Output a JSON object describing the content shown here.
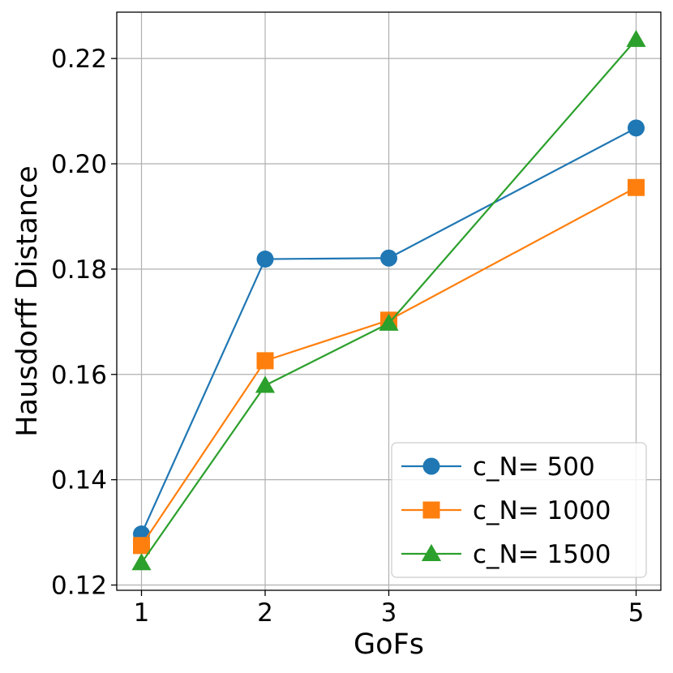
{
  "chart_data": {
    "type": "line",
    "title": "",
    "xlabel": "GoFs",
    "ylabel": "Hausdorff Distance",
    "x": [
      1,
      2,
      3,
      5
    ],
    "xlim": [
      0.8,
      5.2
    ],
    "ylim": [
      0.119,
      0.2288
    ],
    "x_ticks": [
      1,
      2,
      3,
      5
    ],
    "x_tick_labels": [
      "1",
      "2",
      "3",
      "5"
    ],
    "y_ticks": [
      0.12,
      0.14,
      0.16,
      0.18,
      0.2,
      0.22
    ],
    "y_tick_labels": [
      "0.12",
      "0.14",
      "0.16",
      "0.18",
      "0.20",
      "0.22"
    ],
    "grid": true,
    "legend_position": "lower-right",
    "series": [
      {
        "name": "c_N= 500",
        "label": "c_N= 500",
        "color": "#1f77b4",
        "marker": "circle",
        "values": [
          0.1297,
          0.1819,
          0.1821,
          0.2068
        ]
      },
      {
        "name": "c_N= 1000",
        "label": "c_N= 1000",
        "color": "#ff7f0e",
        "marker": "square",
        "values": [
          0.1275,
          0.1626,
          0.1703,
          0.1955
        ]
      },
      {
        "name": "c_N= 1500",
        "label": "c_N= 1500",
        "color": "#2ca02c",
        "marker": "triangle",
        "values": [
          0.1242,
          0.1579,
          0.1697,
          0.2236
        ]
      }
    ]
  }
}
